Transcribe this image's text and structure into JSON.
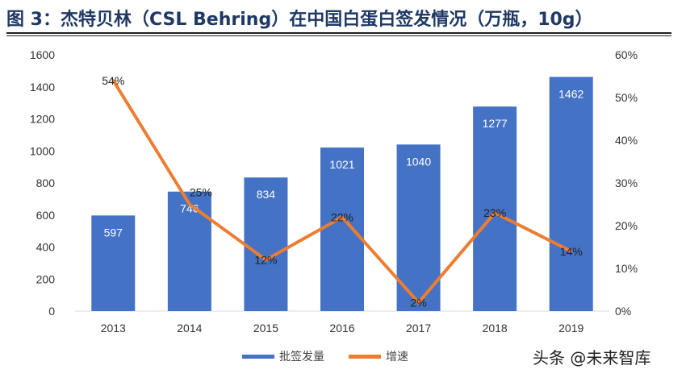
{
  "title": "图 3：杰特贝林（CSL Behring）在中国白蛋白签发情况（万瓶，10g）",
  "watermark": "头条 @未来智库",
  "chart_data": {
    "type": "bar+line",
    "categories": [
      "2013",
      "2014",
      "2015",
      "2016",
      "2017",
      "2018",
      "2019"
    ],
    "series": [
      {
        "name": "批签发量",
        "type": "bar",
        "axis": "left",
        "color": "#4472c4",
        "values": [
          597,
          746,
          834,
          1021,
          1040,
          1277,
          1462
        ]
      },
      {
        "name": "增速",
        "type": "line",
        "axis": "right",
        "color": "#ed7d31",
        "values": [
          54,
          25,
          12,
          22,
          2,
          23,
          14
        ],
        "labels": [
          "54%",
          "25%",
          "12%",
          "22%",
          "2%",
          "23%",
          "14%"
        ]
      }
    ],
    "y_left": {
      "range": [
        0,
        1600
      ],
      "ticks": [
        "0",
        "200",
        "400",
        "600",
        "800",
        "1000",
        "1200",
        "1400",
        "1600"
      ]
    },
    "y_right": {
      "range": [
        0,
        60
      ],
      "ticks": [
        "0%",
        "10%",
        "20%",
        "30%",
        "40%",
        "50%",
        "60%"
      ]
    },
    "grid": false,
    "legend": "bottom"
  }
}
